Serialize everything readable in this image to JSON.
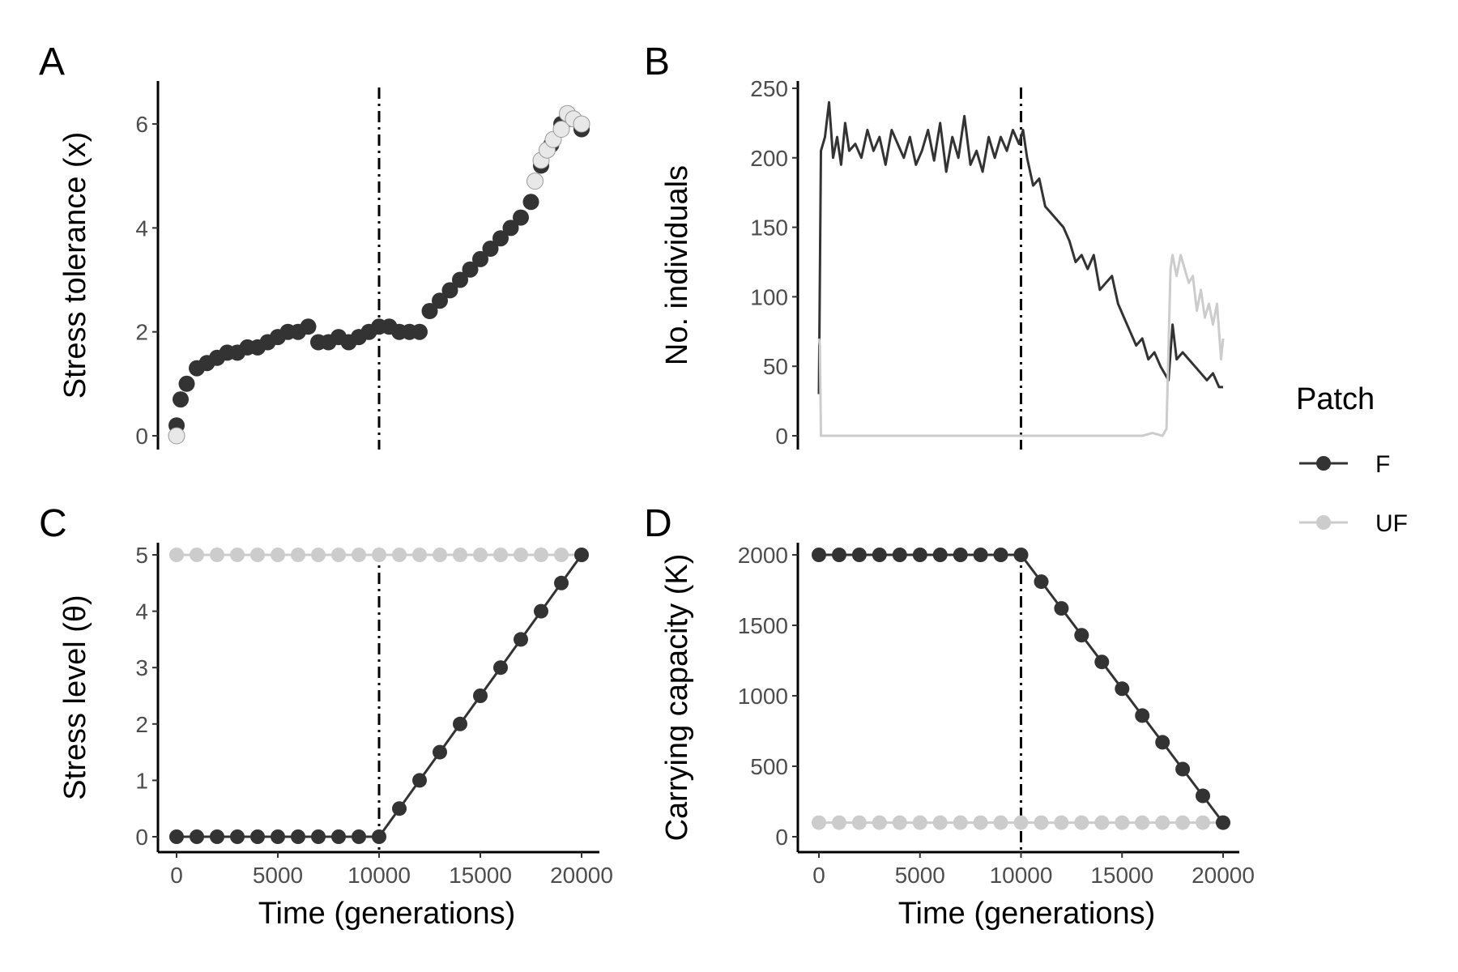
{
  "legend": {
    "title": "Patch",
    "items": [
      {
        "label": "F",
        "color": "#333333"
      },
      {
        "label": "UF",
        "color": "#cccccc"
      }
    ]
  },
  "chart_data": [
    {
      "panel": "A",
      "type": "scatter",
      "xlabel": "",
      "ylabel": "Stress tolerance (x)",
      "xlim": [
        0,
        20000
      ],
      "ylim": [
        0,
        6.5
      ],
      "yticks": [
        "0",
        "2",
        "4",
        "6"
      ],
      "xticks": [],
      "vline": 10000,
      "series": [
        {
          "name": "F",
          "color": "#333333",
          "x": [
            0,
            200,
            500,
            1000,
            1500,
            2000,
            2500,
            3000,
            3500,
            4000,
            4500,
            5000,
            5500,
            6000,
            6500,
            7000,
            7500,
            8000,
            8500,
            9000,
            9500,
            10000,
            10500,
            11000,
            11500,
            12000,
            12500,
            13000,
            13500,
            14000,
            14500,
            15000,
            15500,
            16000,
            16500,
            17000,
            17500,
            18000,
            18500,
            19000,
            19500,
            20000
          ],
          "y": [
            0.2,
            0.7,
            1.0,
            1.3,
            1.4,
            1.5,
            1.6,
            1.6,
            1.7,
            1.7,
            1.8,
            1.9,
            2.0,
            2.0,
            2.1,
            1.8,
            1.8,
            1.9,
            1.8,
            1.9,
            2.0,
            2.1,
            2.1,
            2.0,
            2.0,
            2.0,
            2.4,
            2.6,
            2.8,
            3.0,
            3.2,
            3.4,
            3.6,
            3.8,
            4.0,
            4.2,
            4.5,
            5.2,
            5.6,
            6.0,
            6.1,
            5.9
          ]
        },
        {
          "name": "UF",
          "color": "#e8e8e8",
          "x": [
            0,
            17700,
            18000,
            18300,
            18600,
            19000,
            19300,
            19600,
            20000
          ],
          "y": [
            0.0,
            4.9,
            5.3,
            5.5,
            5.7,
            5.9,
            6.2,
            6.1,
            6.0
          ]
        }
      ]
    },
    {
      "panel": "B",
      "type": "line",
      "xlabel": "",
      "ylabel": "No. individuals",
      "xlim": [
        0,
        20000
      ],
      "ylim": [
        0,
        250
      ],
      "yticks": [
        "0",
        "50",
        "100",
        "150",
        "200",
        "250"
      ],
      "xticks": [],
      "vline": 10000,
      "series": [
        {
          "name": "F",
          "color": "#333333",
          "x": [
            0,
            100,
            300,
            500,
            700,
            900,
            1100,
            1300,
            1500,
            1800,
            2100,
            2400,
            2700,
            3000,
            3300,
            3600,
            3900,
            4200,
            4500,
            4800,
            5100,
            5400,
            5700,
            6000,
            6300,
            6600,
            6900,
            7200,
            7500,
            7800,
            8100,
            8400,
            8700,
            9000,
            9300,
            9600,
            9900,
            10100,
            10300,
            10600,
            10900,
            11200,
            11500,
            11800,
            12100,
            12400,
            12700,
            13000,
            13300,
            13600,
            13900,
            14200,
            14500,
            14800,
            15100,
            15400,
            15700,
            16000,
            16300,
            16600,
            16900,
            17100,
            17300,
            17500,
            17700,
            18000,
            18300,
            18600,
            18900,
            19200,
            19500,
            19800,
            20000
          ],
          "y": [
            30,
            205,
            215,
            240,
            200,
            215,
            195,
            225,
            205,
            210,
            200,
            220,
            205,
            215,
            195,
            220,
            210,
            200,
            215,
            195,
            205,
            220,
            198,
            225,
            190,
            215,
            200,
            230,
            195,
            205,
            190,
            215,
            200,
            215,
            205,
            220,
            210,
            220,
            200,
            180,
            185,
            165,
            160,
            155,
            150,
            140,
            125,
            130,
            120,
            130,
            105,
            110,
            115,
            95,
            85,
            75,
            65,
            70,
            55,
            60,
            50,
            45,
            40,
            80,
            55,
            60,
            55,
            50,
            45,
            40,
            45,
            35,
            35
          ]
        },
        {
          "name": "UF",
          "color": "#cccccc",
          "x": [
            0,
            50,
            100,
            400,
            1000,
            3000,
            5000,
            7000,
            9000,
            10000,
            12000,
            14000,
            15000,
            16000,
            16500,
            17000,
            17200,
            17400,
            17500,
            17700,
            17900,
            18100,
            18300,
            18500,
            18700,
            18900,
            19100,
            19300,
            19500,
            19700,
            19900,
            20000
          ],
          "y": [
            70,
            65,
            0,
            0,
            0,
            0,
            0,
            0,
            0,
            0,
            0,
            0,
            0,
            0,
            2,
            0,
            5,
            120,
            130,
            115,
            130,
            120,
            110,
            115,
            90,
            105,
            85,
            95,
            80,
            95,
            55,
            70
          ]
        }
      ]
    },
    {
      "panel": "C",
      "type": "line",
      "xlabel": "Time (generations)",
      "ylabel": "Stress level (θ)",
      "xlim": [
        0,
        20000
      ],
      "ylim": [
        0,
        5
      ],
      "yticks": [
        "0",
        "1",
        "2",
        "3",
        "4",
        "5"
      ],
      "xticks": [
        "0",
        "5000",
        "10000",
        "15000",
        "20000"
      ],
      "vline": 10000,
      "series": [
        {
          "name": "UF",
          "color": "#cccccc",
          "x": [
            0,
            1000,
            2000,
            3000,
            4000,
            5000,
            6000,
            7000,
            8000,
            9000,
            10000,
            11000,
            12000,
            13000,
            14000,
            15000,
            16000,
            17000,
            18000,
            19000,
            20000
          ],
          "y": [
            5,
            5,
            5,
            5,
            5,
            5,
            5,
            5,
            5,
            5,
            5,
            5,
            5,
            5,
            5,
            5,
            5,
            5,
            5,
            5,
            5
          ]
        },
        {
          "name": "F",
          "color": "#333333",
          "x": [
            0,
            1000,
            2000,
            3000,
            4000,
            5000,
            6000,
            7000,
            8000,
            9000,
            10000,
            11000,
            12000,
            13000,
            14000,
            15000,
            16000,
            17000,
            18000,
            19000,
            20000
          ],
          "y": [
            0,
            0,
            0,
            0,
            0,
            0,
            0,
            0,
            0,
            0,
            0,
            0.5,
            1.0,
            1.5,
            2.0,
            2.5,
            3.0,
            3.5,
            4.0,
            4.5,
            5.0
          ]
        }
      ]
    },
    {
      "panel": "D",
      "type": "line",
      "xlabel": "Time (generations)",
      "ylabel": "Carrying capacity (K)",
      "xlim": [
        0,
        20000
      ],
      "ylim": [
        0,
        2000
      ],
      "yticks": [
        "0",
        "500",
        "1000",
        "1500",
        "2000"
      ],
      "xticks": [
        "0",
        "5000",
        "10000",
        "15000",
        "20000"
      ],
      "vline": 10000,
      "series": [
        {
          "name": "UF",
          "color": "#cccccc",
          "x": [
            0,
            1000,
            2000,
            3000,
            4000,
            5000,
            6000,
            7000,
            8000,
            9000,
            10000,
            11000,
            12000,
            13000,
            14000,
            15000,
            16000,
            17000,
            18000,
            19000,
            20000
          ],
          "y": [
            100,
            100,
            100,
            100,
            100,
            100,
            100,
            100,
            100,
            100,
            100,
            100,
            100,
            100,
            100,
            100,
            100,
            100,
            100,
            100,
            100
          ]
        },
        {
          "name": "F",
          "color": "#333333",
          "x": [
            0,
            1000,
            2000,
            3000,
            4000,
            5000,
            6000,
            7000,
            8000,
            9000,
            10000,
            11000,
            12000,
            13000,
            14000,
            15000,
            16000,
            17000,
            18000,
            19000,
            20000
          ],
          "y": [
            2000,
            2000,
            2000,
            2000,
            2000,
            2000,
            2000,
            2000,
            2000,
            2000,
            2000,
            1810,
            1620,
            1430,
            1240,
            1050,
            860,
            670,
            480,
            290,
            100
          ]
        }
      ]
    }
  ]
}
